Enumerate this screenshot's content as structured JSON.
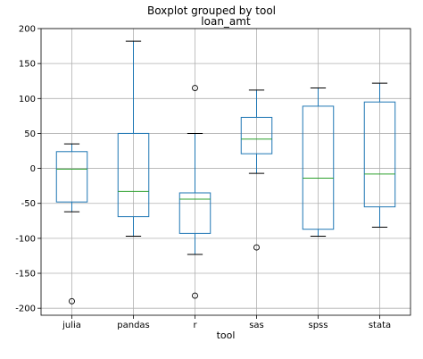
{
  "chart_data": {
    "type": "boxplot",
    "suptitle": "Boxplot grouped by tool",
    "title": "loan_amt",
    "xlabel": "tool",
    "ylabel": "",
    "ylim": [
      -210,
      200
    ],
    "yticks": [
      200,
      150,
      100,
      50,
      0,
      -50,
      -100,
      -150,
      -200
    ],
    "grid": true,
    "colors": {
      "box": "#1f77b4",
      "median": "#2ca02c",
      "whisker": "#000000",
      "grid": "#b0b0b0"
    },
    "categories": [
      "julia",
      "pandas",
      "r",
      "sas",
      "spss",
      "stata"
    ],
    "boxes": [
      {
        "category": "julia",
        "whislo": -62,
        "q1": -48,
        "med": -1,
        "q3": 24,
        "whishi": 35,
        "fliers": [
          -190
        ]
      },
      {
        "category": "pandas",
        "whislo": -97,
        "q1": -69,
        "med": -33,
        "q3": 50,
        "whishi": 182,
        "fliers": []
      },
      {
        "category": "r",
        "whislo": -123,
        "q1": -93,
        "med": -44,
        "q3": -35,
        "whishi": 50,
        "fliers": [
          115,
          -182
        ]
      },
      {
        "category": "sas",
        "whislo": -7,
        "q1": 21,
        "med": 42,
        "q3": 73,
        "whishi": 112,
        "fliers": [
          -113
        ]
      },
      {
        "category": "spss",
        "whislo": -97,
        "q1": -87,
        "med": -14,
        "q3": 89,
        "whishi": 115,
        "fliers": []
      },
      {
        "category": "stata",
        "whislo": -84,
        "q1": -55,
        "med": -8,
        "q3": 95,
        "whishi": 122,
        "fliers": []
      }
    ]
  }
}
